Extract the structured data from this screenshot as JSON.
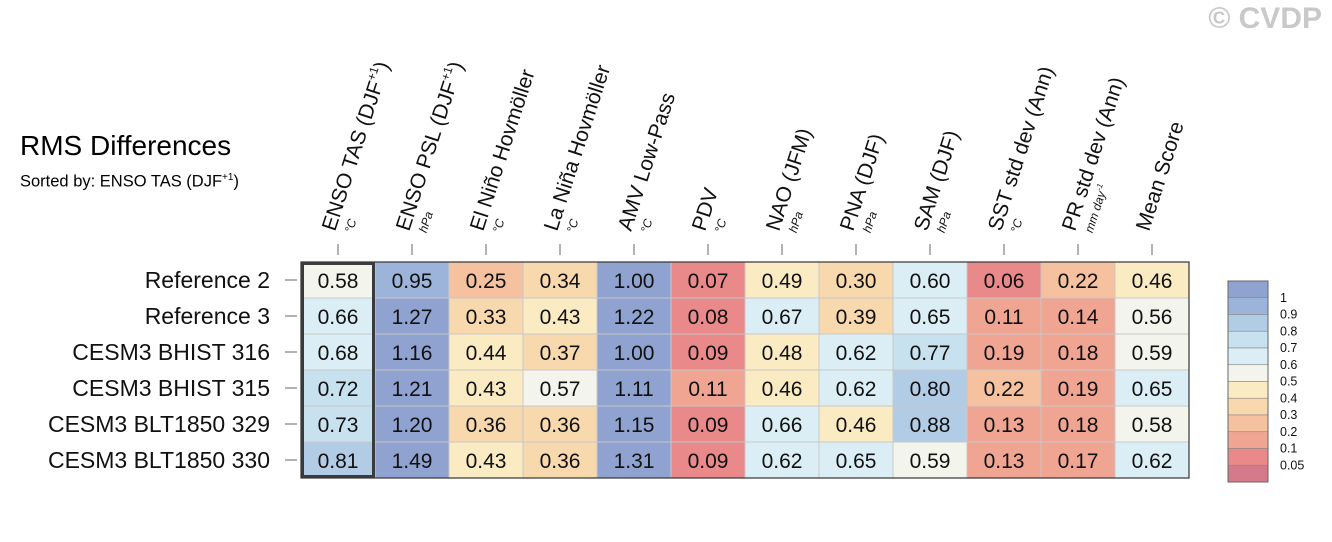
{
  "watermark": "© CVDP",
  "title": "RMS Differences",
  "subtitle": {
    "prefix": "Sorted by: ENSO TAS (DJF",
    "sup": "+1",
    "suffix": ")"
  },
  "colors": {
    "bins": [
      "#d47a8a",
      "#e9898a",
      "#f0a592",
      "#f5c19e",
      "#f8d9ae",
      "#fbebc2",
      "#f3f4ec",
      "#dbeef5",
      "#c7e1ef",
      "#b3cce6",
      "#9db4da",
      "#8fa2d0"
    ],
    "grid_line": "#c8c8c8",
    "frame": "#333333",
    "highlight_frame": "#3a3a3a"
  },
  "chart_data": {
    "type": "heatmap",
    "title": "RMS Differences",
    "sorted_by": "ENSO TAS (DJF+1)",
    "columns": [
      {
        "label": "ENSO TAS (DJF",
        "sup": "+1",
        "label_end": ")",
        "unit": "°C"
      },
      {
        "label": "ENSO PSL (DJF",
        "sup": "+1",
        "label_end": ")",
        "unit": "hPa"
      },
      {
        "label": "El Niño Hovmöller",
        "unit": "°C"
      },
      {
        "label": "La Niña Hovmöller",
        "unit": "°C"
      },
      {
        "label": "AMV Low-Pass",
        "unit": "°C"
      },
      {
        "label": "PDV",
        "unit": "°C"
      },
      {
        "label": "NAO (JFM)",
        "unit": "hPa"
      },
      {
        "label": "PNA (DJF)",
        "unit": "hPa"
      },
      {
        "label": "SAM (DJF)",
        "unit": "hPa"
      },
      {
        "label": "SST std dev (Ann)",
        "unit": "°C"
      },
      {
        "label": "PR std dev (Ann)",
        "unit": "mm day",
        "unit_sup": "-1"
      },
      {
        "label": "Mean Score",
        "unit": ""
      }
    ],
    "rows": [
      "Reference 2",
      "Reference 3",
      "CESM3 BHIST 316",
      "CESM3 BHIST 315",
      "CESM3 BLT1850 329",
      "CESM3 BLT1850 330"
    ],
    "values": [
      [
        "0.58",
        "0.95",
        "0.25",
        "0.34",
        "1.00",
        "0.07",
        "0.49",
        "0.30",
        "0.60",
        "0.06",
        "0.22",
        "0.46"
      ],
      [
        "0.66",
        "1.27",
        "0.33",
        "0.43",
        "1.22",
        "0.08",
        "0.67",
        "0.39",
        "0.65",
        "0.11",
        "0.14",
        "0.56"
      ],
      [
        "0.68",
        "1.16",
        "0.44",
        "0.37",
        "1.00",
        "0.09",
        "0.48",
        "0.62",
        "0.77",
        "0.19",
        "0.18",
        "0.59"
      ],
      [
        "0.72",
        "1.21",
        "0.43",
        "0.57",
        "1.11",
        "0.11",
        "0.46",
        "0.62",
        "0.80",
        "0.22",
        "0.19",
        "0.65"
      ],
      [
        "0.73",
        "1.20",
        "0.36",
        "0.36",
        "1.15",
        "0.09",
        "0.66",
        "0.46",
        "0.88",
        "0.13",
        "0.18",
        "0.58"
      ],
      [
        "0.81",
        "1.49",
        "0.43",
        "0.36",
        "1.31",
        "0.09",
        "0.62",
        "0.65",
        "0.59",
        "0.13",
        "0.17",
        "0.62"
      ]
    ],
    "colorbar": {
      "levels": [
        0.05,
        0.1,
        0.2,
        0.3,
        0.4,
        0.5,
        0.6,
        0.7,
        0.8,
        0.9,
        1
      ],
      "labels": [
        "1",
        "0.9",
        "0.8",
        "0.7",
        "0.6",
        "0.5",
        "0.4",
        "0.3",
        "0.2",
        "0.1",
        "0.05"
      ]
    },
    "highlighted_column": 0
  }
}
